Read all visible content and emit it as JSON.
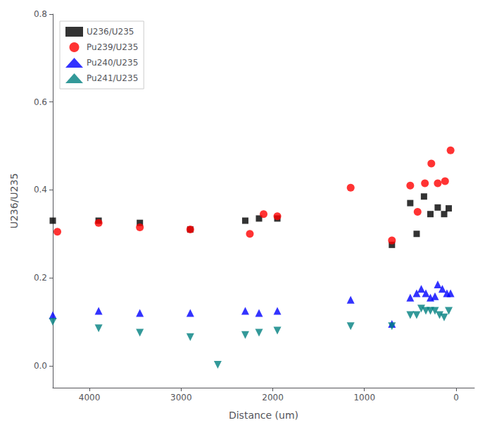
{
  "chart_data": {
    "type": "scatter",
    "xlabel": "Distance (um)",
    "ylabel": "U236/U235",
    "xlim": [
      4400,
      -200
    ],
    "ylim": [
      -0.05,
      0.8
    ],
    "xticks": [
      4000,
      3000,
      2000,
      1000,
      0
    ],
    "yticks": [
      {
        "value": 0,
        "label": "0.0"
      },
      0.2,
      0.4,
      0.6,
      0.8
    ],
    "grid": false,
    "legend": "upper left",
    "series": [
      {
        "name": "U236/U235",
        "color": "#000000",
        "marker": "square",
        "x": [
          3900,
          4400,
          3450,
          2900,
          2300,
          2150,
          1950,
          700,
          500,
          430,
          350,
          280,
          200,
          130,
          80
        ],
        "values": [
          0.33,
          0.33,
          0.325,
          0.31,
          0.33,
          0.335,
          0.335,
          0.275,
          0.37,
          0.3,
          0.385,
          0.345,
          0.36,
          0.345,
          0.358
        ]
      },
      {
        "name": "Pu239/U235",
        "color": "#ff0000",
        "marker": "circle",
        "x": [
          3900,
          4350,
          3450,
          2900,
          2250,
          2100,
          1950,
          700,
          1150,
          500,
          420,
          340,
          270,
          200,
          120,
          60
        ],
        "values": [
          0.325,
          0.305,
          0.315,
          0.31,
          0.3,
          0.345,
          0.34,
          0.285,
          0.405,
          0.41,
          0.35,
          0.415,
          0.46,
          0.415,
          0.42,
          0.49
        ]
      },
      {
        "name": "Pu240/U235",
        "color": "#0000ff",
        "marker": "triangle-up",
        "x": [
          3900,
          4400,
          3450,
          2900,
          2300,
          2150,
          1950,
          1150,
          700,
          500,
          430,
          380,
          330,
          280,
          230,
          200,
          150,
          100,
          60
        ],
        "values": [
          0.125,
          0.115,
          0.12,
          0.12,
          0.125,
          0.12,
          0.125,
          0.15,
          0.095,
          0.155,
          0.165,
          0.175,
          0.165,
          0.155,
          0.158,
          0.185,
          0.175,
          0.165,
          0.165
        ]
      },
      {
        "name": "Pu241/U235",
        "color": "#008080",
        "marker": "triangle-down",
        "x": [
          3900,
          4400,
          3450,
          2900,
          2300,
          2150,
          1950,
          2600,
          1150,
          700,
          500,
          430,
          380,
          330,
          280,
          230,
          180,
          130,
          80
        ],
        "values": [
          0.085,
          0.1,
          0.075,
          0.065,
          0.07,
          0.075,
          0.08,
          0.002,
          0.09,
          0.09,
          0.115,
          0.115,
          0.13,
          0.125,
          0.125,
          0.125,
          0.115,
          0.11,
          0.125
        ]
      }
    ]
  }
}
